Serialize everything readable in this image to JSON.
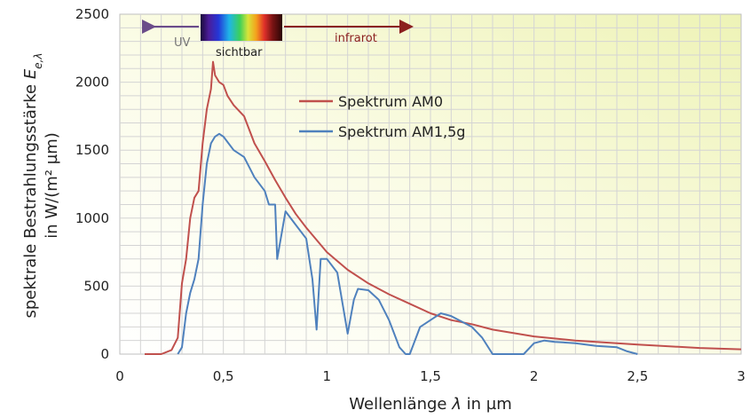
{
  "chart_data": {
    "type": "line",
    "xlabel_prefix": "Wellenlänge ",
    "xlabel_symbol": "λ",
    "xlabel_suffix": " in µm",
    "ylabel_line1": "spektrale Bestrahlungsstärke ",
    "ylabel_symbol": "E",
    "ylabel_subscript": "e,λ",
    "ylabel_line2": "in W/(m² µm)",
    "xlim": [
      0,
      3
    ],
    "ylim": [
      0,
      2500
    ],
    "x_ticks": [
      0,
      0.5,
      1,
      1.5,
      2,
      2.5,
      3
    ],
    "x_tick_labels": [
      "0",
      "0,5",
      "1",
      "1,5",
      "2",
      "2,5",
      "3"
    ],
    "y_ticks": [
      0,
      500,
      1000,
      1500,
      2000,
      2500
    ],
    "y_tick_labels": [
      "0",
      "500",
      "1000",
      "1500",
      "2000",
      "2500"
    ],
    "grid": true,
    "legend_position": "top-center",
    "annotations": {
      "uv": "UV",
      "visible": "sichtbar",
      "infrared": "infrarot"
    },
    "colors": {
      "am0": "#c0504d",
      "am15": "#4f81bd",
      "uv_arrow": "#6b4c8a",
      "ir_arrow": "#8b1f1f",
      "grid": "#d4d4d4"
    },
    "series": [
      {
        "name": "Spektrum AM0",
        "x": [
          0.12,
          0.2,
          0.25,
          0.28,
          0.3,
          0.32,
          0.34,
          0.36,
          0.38,
          0.4,
          0.42,
          0.44,
          0.45,
          0.46,
          0.48,
          0.5,
          0.52,
          0.55,
          0.6,
          0.65,
          0.7,
          0.75,
          0.8,
          0.85,
          0.9,
          1.0,
          1.1,
          1.2,
          1.3,
          1.4,
          1.5,
          1.6,
          1.7,
          1.8,
          2.0,
          2.2,
          2.5,
          2.8,
          3.0
        ],
        "y": [
          0,
          0,
          30,
          120,
          520,
          700,
          1000,
          1150,
          1200,
          1550,
          1800,
          1950,
          2150,
          2050,
          2000,
          1980,
          1900,
          1830,
          1750,
          1550,
          1420,
          1280,
          1150,
          1030,
          930,
          750,
          620,
          520,
          440,
          370,
          300,
          250,
          220,
          180,
          130,
          100,
          70,
          45,
          35
        ]
      },
      {
        "name": "Spektrum AM1,5g",
        "x": [
          0.28,
          0.3,
          0.32,
          0.34,
          0.36,
          0.38,
          0.4,
          0.42,
          0.44,
          0.46,
          0.48,
          0.5,
          0.55,
          0.6,
          0.65,
          0.7,
          0.72,
          0.75,
          0.76,
          0.8,
          0.85,
          0.9,
          0.93,
          0.95,
          0.97,
          1.0,
          1.05,
          1.1,
          1.13,
          1.15,
          1.2,
          1.25,
          1.3,
          1.35,
          1.38,
          1.4,
          1.45,
          1.5,
          1.55,
          1.6,
          1.7,
          1.75,
          1.8,
          1.85,
          1.9,
          1.95,
          2.0,
          2.05,
          2.1,
          2.2,
          2.3,
          2.4,
          2.45,
          2.5
        ],
        "y": [
          0,
          50,
          300,
          450,
          550,
          700,
          1100,
          1400,
          1550,
          1600,
          1620,
          1600,
          1500,
          1450,
          1300,
          1200,
          1100,
          1100,
          700,
          1050,
          950,
          850,
          550,
          180,
          700,
          700,
          600,
          150,
          400,
          480,
          470,
          400,
          250,
          50,
          0,
          0,
          200,
          250,
          300,
          280,
          200,
          120,
          0,
          0,
          0,
          0,
          80,
          100,
          90,
          80,
          60,
          50,
          20,
          0
        ]
      }
    ]
  }
}
